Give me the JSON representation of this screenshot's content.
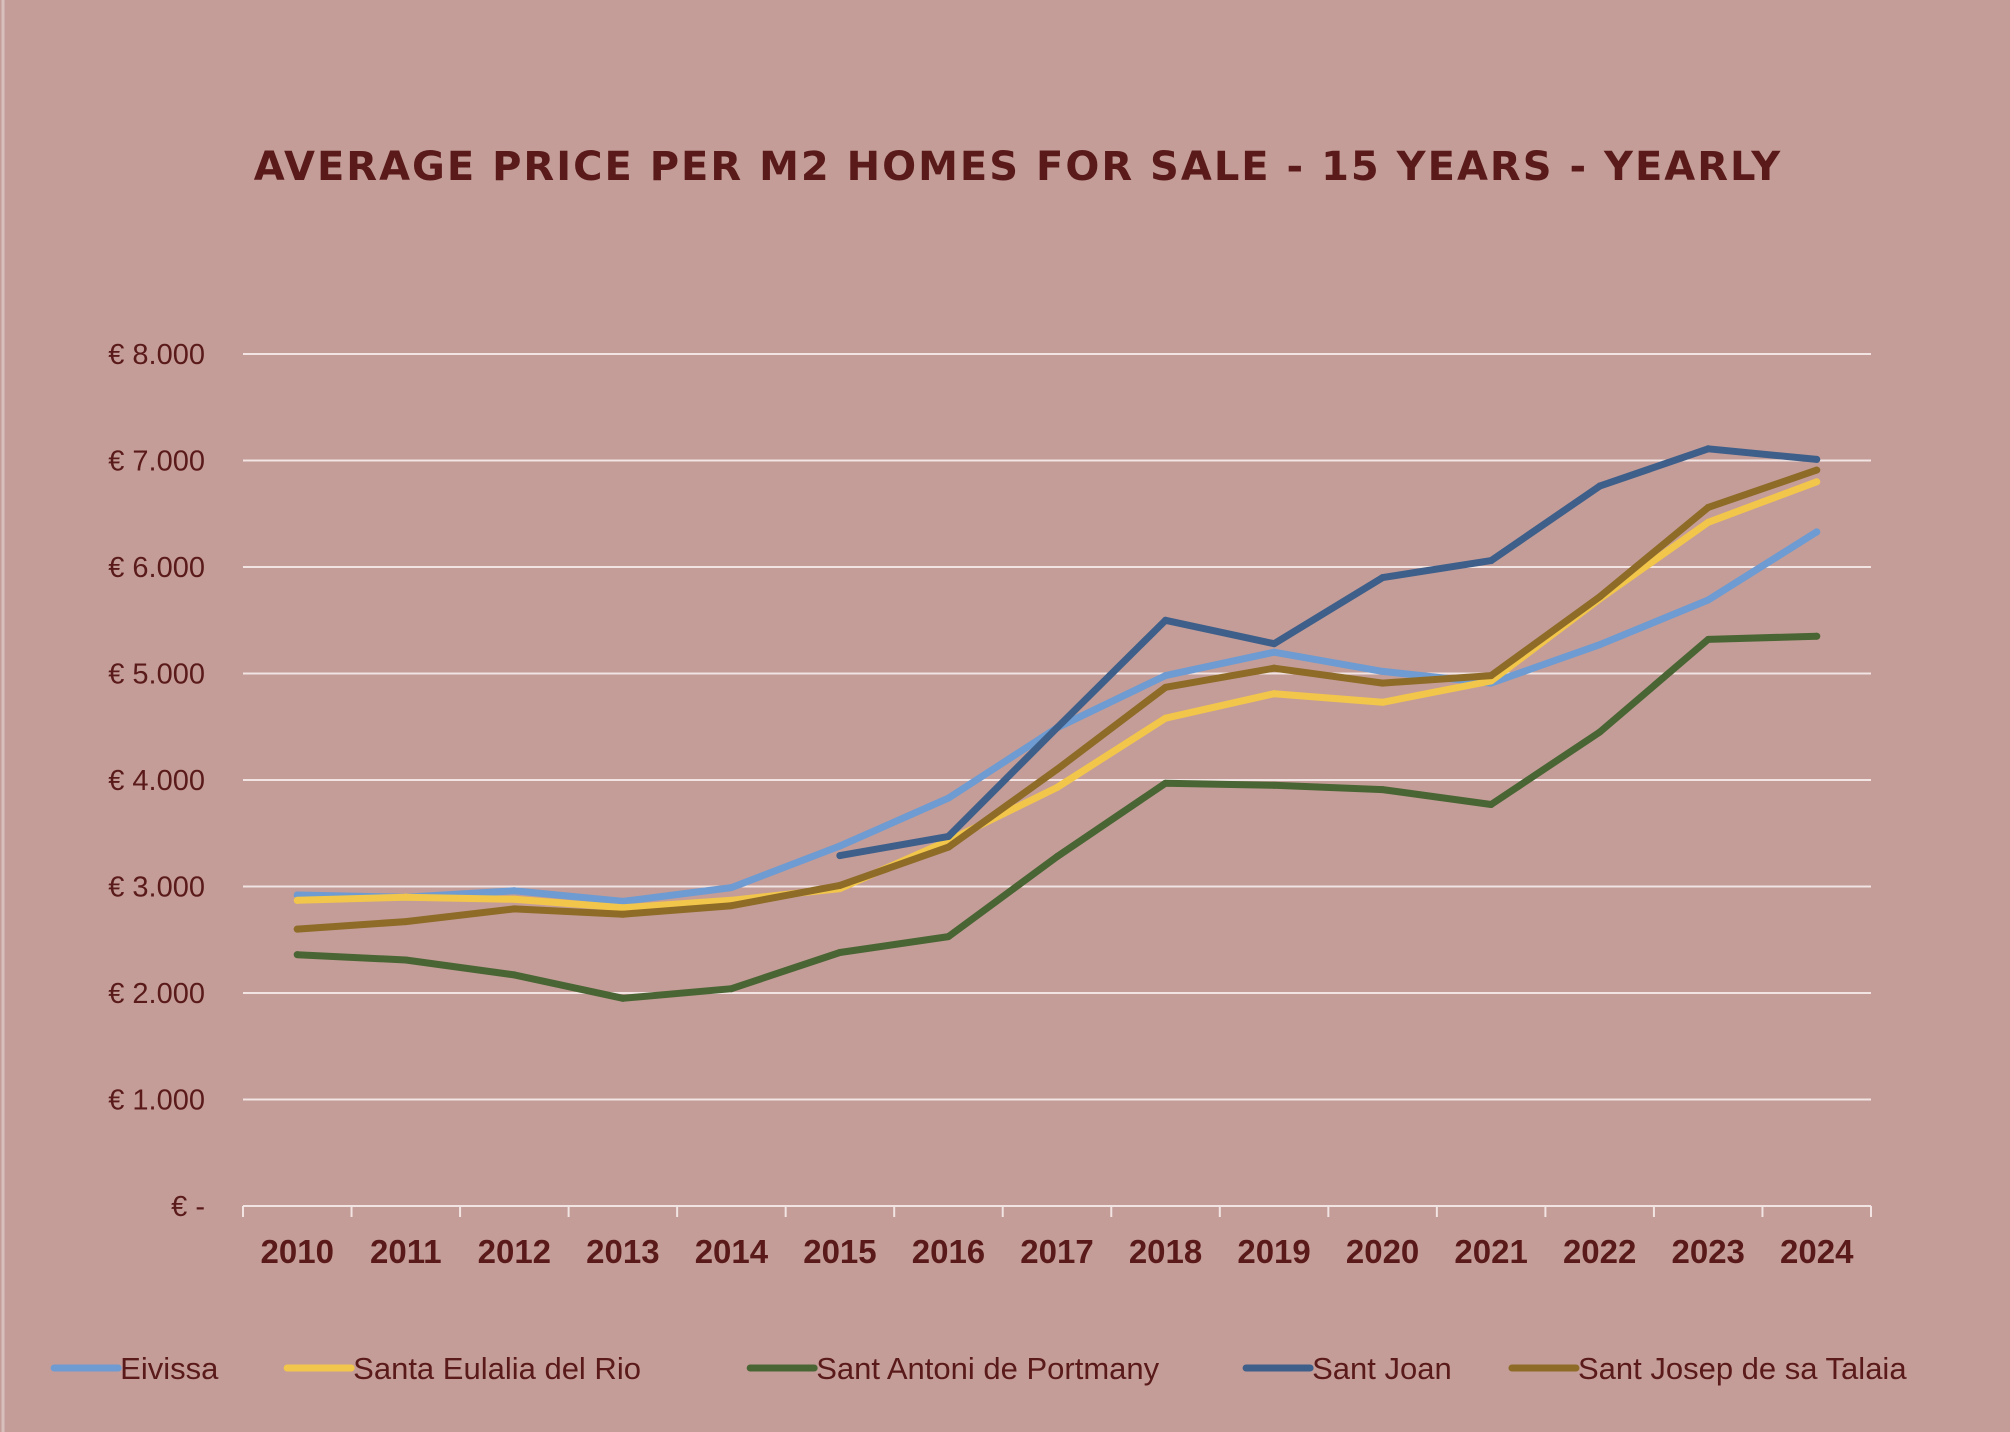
{
  "chart_data": {
    "type": "line",
    "title": "AVERAGE PRICE PER M2 HOMES FOR SALE - 15 YEARS - YEARLY",
    "xlabel": "",
    "ylabel": "",
    "x": [
      "2010",
      "2011",
      "2012",
      "2013",
      "2014",
      "2015",
      "2016",
      "2017",
      "2018",
      "2019",
      "2020",
      "2021",
      "2022",
      "2023",
      "2024"
    ],
    "ylim": [
      0,
      8000
    ],
    "yticks": [
      {
        "value": 0,
        "label": "€ -"
      },
      {
        "value": 1000,
        "label": "€ 1.000"
      },
      {
        "value": 2000,
        "label": "€ 2.000"
      },
      {
        "value": 3000,
        "label": "€ 3.000"
      },
      {
        "value": 4000,
        "label": "€ 4.000"
      },
      {
        "value": 5000,
        "label": "€ 5.000"
      },
      {
        "value": 6000,
        "label": "€ 6.000"
      },
      {
        "value": 7000,
        "label": "€ 7.000"
      },
      {
        "value": 8000,
        "label": "€ 8.000"
      }
    ],
    "grid": true,
    "legend_position": "bottom",
    "series": [
      {
        "name": "Eivissa",
        "color": "#6e9bd1",
        "values": [
          2920,
          2900,
          2960,
          2860,
          2990,
          3380,
          3830,
          4490,
          4980,
          5200,
          5020,
          4910,
          5270,
          5690,
          6330
        ]
      },
      {
        "name": "Santa Eulalia del Rio",
        "color": "#f2c64a",
        "values": [
          2870,
          2900,
          2880,
          2800,
          2870,
          2980,
          3430,
          3930,
          4580,
          4810,
          4730,
          4930,
          5700,
          6420,
          6800
        ]
      },
      {
        "name": "Sant Antoni de Portmany",
        "color": "#4a6534",
        "values": [
          2360,
          2310,
          2170,
          1950,
          2040,
          2380,
          2530,
          3280,
          3970,
          3950,
          3910,
          3770,
          4450,
          5320,
          5350
        ]
      },
      {
        "name": "Sant Joan",
        "color": "#3e5f8a",
        "values": [
          null,
          null,
          null,
          null,
          null,
          3290,
          3470,
          4490,
          5500,
          5280,
          5900,
          6060,
          6760,
          7110,
          7010
        ]
      },
      {
        "name": "Sant Josep de sa Talaia",
        "color": "#8e6b27",
        "values": [
          2600,
          2670,
          2790,
          2740,
          2820,
          3010,
          3370,
          4100,
          4870,
          5050,
          4910,
          4980,
          5720,
          6560,
          6910
        ]
      }
    ]
  },
  "colors": {
    "background": "#c49d98",
    "text": "#5a1a1a",
    "grid": "#f1e4e2"
  }
}
